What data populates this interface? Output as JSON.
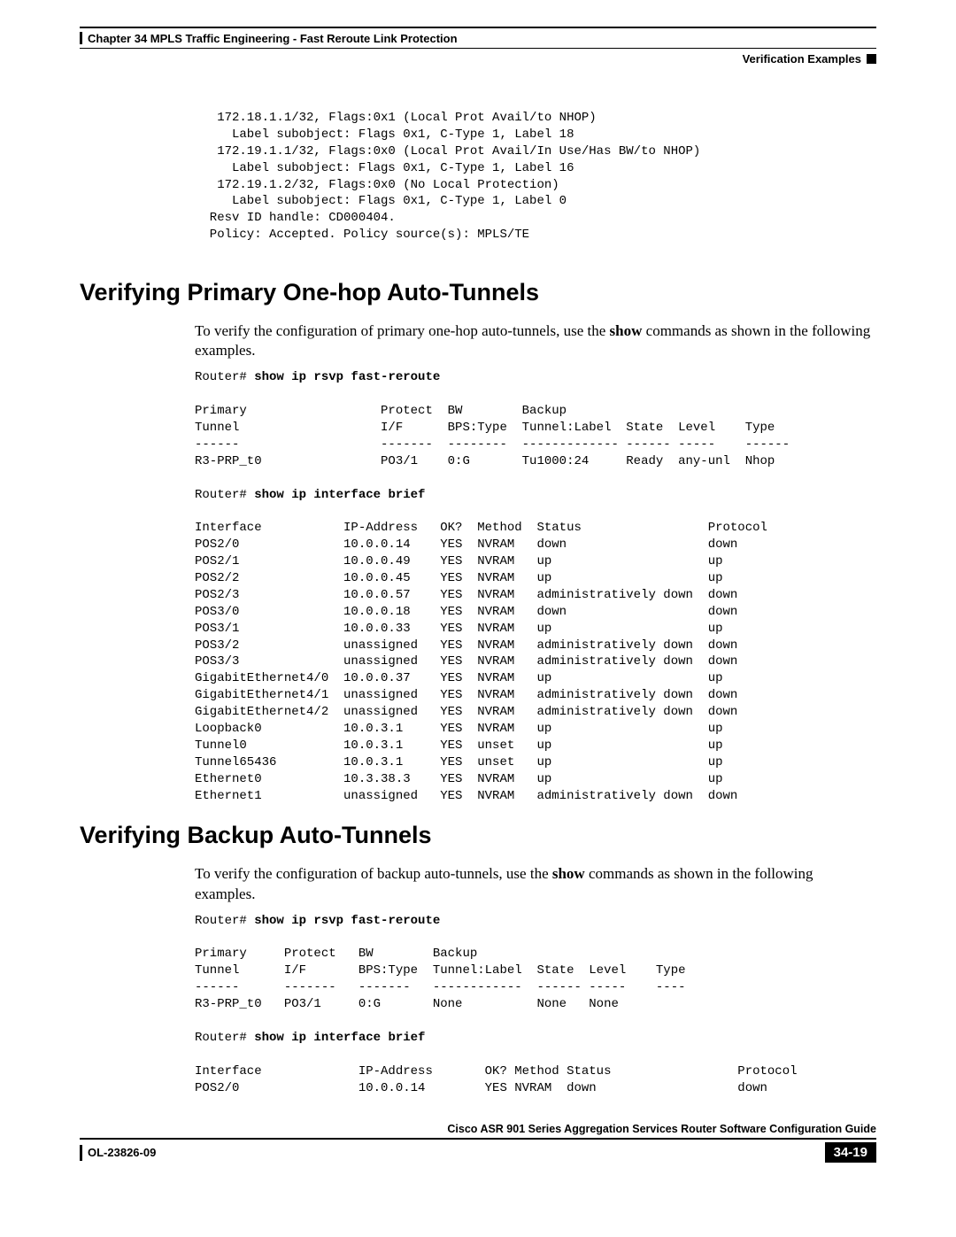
{
  "header": {
    "chapter_label": "Chapter 34    MPLS Traffic Engineering - Fast Reroute Link Protection",
    "section_label": "Verification Examples"
  },
  "top_code": "   172.18.1.1/32, Flags:0x1 (Local Prot Avail/to NHOP)\n     Label subobject: Flags 0x1, C-Type 1, Label 18\n   172.19.1.1/32, Flags:0x0 (Local Prot Avail/In Use/Has BW/to NHOP)\n     Label subobject: Flags 0x1, C-Type 1, Label 16\n   172.19.1.2/32, Flags:0x0 (No Local Protection)\n     Label subobject: Flags 0x1, C-Type 1, Label 0\n  Resv ID handle: CD000404.\n  Policy: Accepted. Policy source(s): MPLS/TE",
  "section1": {
    "heading": "Verifying Primary One-hop Auto-Tunnels",
    "intro_pre": "To verify the configuration of primary one-hop auto-tunnels, use the ",
    "intro_bold": "show",
    "intro_post": " commands as shown in the following examples.",
    "cmd1_prompt": "Router# ",
    "cmd1": "show ip rsvp fast-reroute",
    "table1": "Primary                  Protect  BW        Backup\nTunnel                   I/F      BPS:Type  Tunnel:Label  State  Level    Type\n------                   -------  --------  ------------- ------ -----    ------\nR3-PRP_t0                PO3/1    0:G       Tu1000:24     Ready  any-unl  Nhop",
    "cmd2_prompt": "Router# ",
    "cmd2": "show ip interface brief",
    "table2": "Interface           IP-Address   OK?  Method  Status                 Protocol\nPOS2/0              10.0.0.14    YES  NVRAM   down                   down\nPOS2/1              10.0.0.49    YES  NVRAM   up                     up\nPOS2/2              10.0.0.45    YES  NVRAM   up                     up\nPOS2/3              10.0.0.57    YES  NVRAM   administratively down  down\nPOS3/0              10.0.0.18    YES  NVRAM   down                   down\nPOS3/1              10.0.0.33    YES  NVRAM   up                     up\nPOS3/2              unassigned   YES  NVRAM   administratively down  down\nPOS3/3              unassigned   YES  NVRAM   administratively down  down\nGigabitEthernet4/0  10.0.0.37    YES  NVRAM   up                     up\nGigabitEthernet4/1  unassigned   YES  NVRAM   administratively down  down\nGigabitEthernet4/2  unassigned   YES  NVRAM   administratively down  down\nLoopback0           10.0.3.1     YES  NVRAM   up                     up\nTunnel0             10.0.3.1     YES  unset   up                     up\nTunnel65436         10.0.3.1     YES  unset   up                     up\nEthernet0           10.3.38.3    YES  NVRAM   up                     up\nEthernet1           unassigned   YES  NVRAM   administratively down  down"
  },
  "section2": {
    "heading": "Verifying Backup Auto-Tunnels",
    "intro_pre": "To verify the configuration of backup auto-tunnels, use the ",
    "intro_bold": "show",
    "intro_post": " commands as shown in the following examples.",
    "cmd1_prompt": "Router# ",
    "cmd1": "show ip rsvp fast-reroute",
    "table1": "Primary     Protect   BW        Backup\nTunnel      I/F       BPS:Type  Tunnel:Label  State  Level    Type\n------      -------   -------   ------------  ------ -----    ----\nR3-PRP_t0   PO3/1     0:G       None          None   None",
    "cmd2_prompt": "Router# ",
    "cmd2": "show ip interface brief",
    "table2": "Interface             IP-Address       OK? Method Status                 Protocol\nPOS2/0                10.0.0.14        YES NVRAM  down                   down"
  },
  "footer": {
    "guide": "Cisco ASR 901 Series Aggregation Services Router Software Configuration Guide",
    "docid": "OL-23826-09",
    "page": "34-19"
  }
}
